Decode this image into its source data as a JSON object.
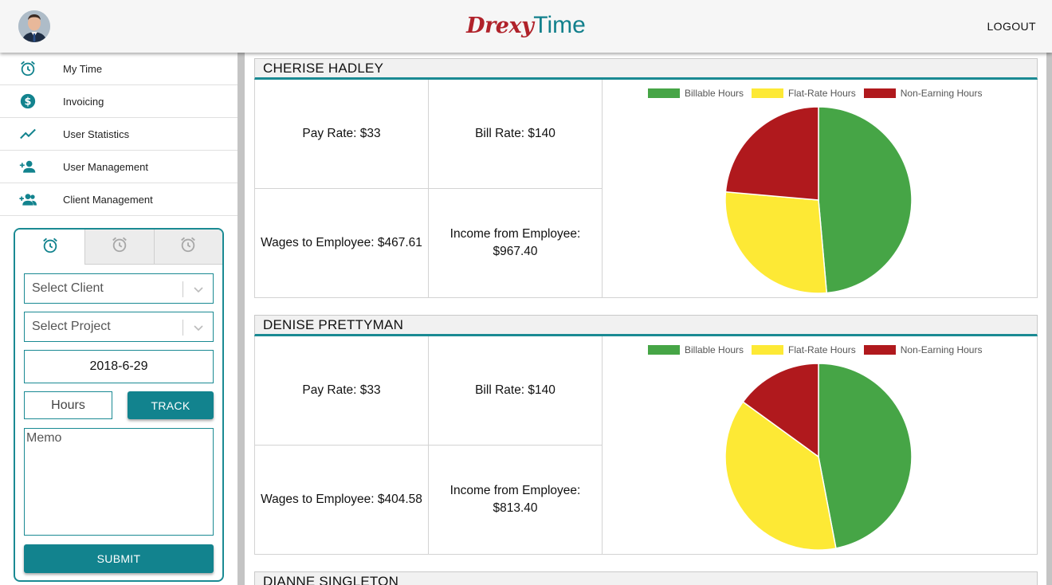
{
  "header": {
    "logo_part1": "Drexy",
    "logo_part2": "Time",
    "logout_label": "LOGOUT"
  },
  "sidebar": {
    "items": [
      {
        "label": "My Time",
        "icon": "alarm-clock-icon"
      },
      {
        "label": "Invoicing",
        "icon": "dollar-circle-icon"
      },
      {
        "label": "User Statistics",
        "icon": "trending-up-icon"
      },
      {
        "label": "User Management",
        "icon": "person-add-icon"
      },
      {
        "label": "Client Management",
        "icon": "group-add-icon"
      }
    ]
  },
  "tracker": {
    "client_placeholder": "Select Client",
    "project_placeholder": "Select Project",
    "date_value": "2018-6-29",
    "hours_placeholder": "Hours",
    "track_label": "TRACK",
    "memo_placeholder": "Memo",
    "submit_label": "SUBMIT"
  },
  "colors": {
    "accent": "#12838e",
    "billable": "#46a546",
    "flat_rate": "#fde935",
    "non_earning": "#b0191d",
    "logo_red": "#b0222a"
  },
  "legend": {
    "billable": "Billable Hours",
    "flat_rate": "Flat-Rate Hours",
    "non_earning": "Non-Earning Hours"
  },
  "employees": [
    {
      "name": "CHERISE HADLEY",
      "pay_rate": "Pay Rate: $33",
      "bill_rate": "Bill Rate: $140",
      "wages": "Wages to Employee: $467.61",
      "income_label": "Income from Employee:",
      "income_value": "$967.40"
    },
    {
      "name": "DENISE PRETTYMAN",
      "pay_rate": "Pay Rate: $33",
      "bill_rate": "Bill Rate: $140",
      "wages": "Wages to Employee: $404.58",
      "income_label": "Income from Employee:",
      "income_value": "$813.40"
    },
    {
      "name": "DIANNE SINGLETON"
    }
  ],
  "chart_data": [
    {
      "type": "pie",
      "categories": [
        "Billable Hours",
        "Flat-Rate Hours",
        "Non-Earning Hours"
      ],
      "values": [
        0.486,
        0.278,
        0.236
      ],
      "legend_position": "top"
    },
    {
      "type": "pie",
      "categories": [
        "Billable Hours",
        "Flat-Rate Hours",
        "Non-Earning Hours"
      ],
      "values": [
        0.47,
        0.38,
        0.15
      ],
      "legend_position": "top"
    }
  ]
}
